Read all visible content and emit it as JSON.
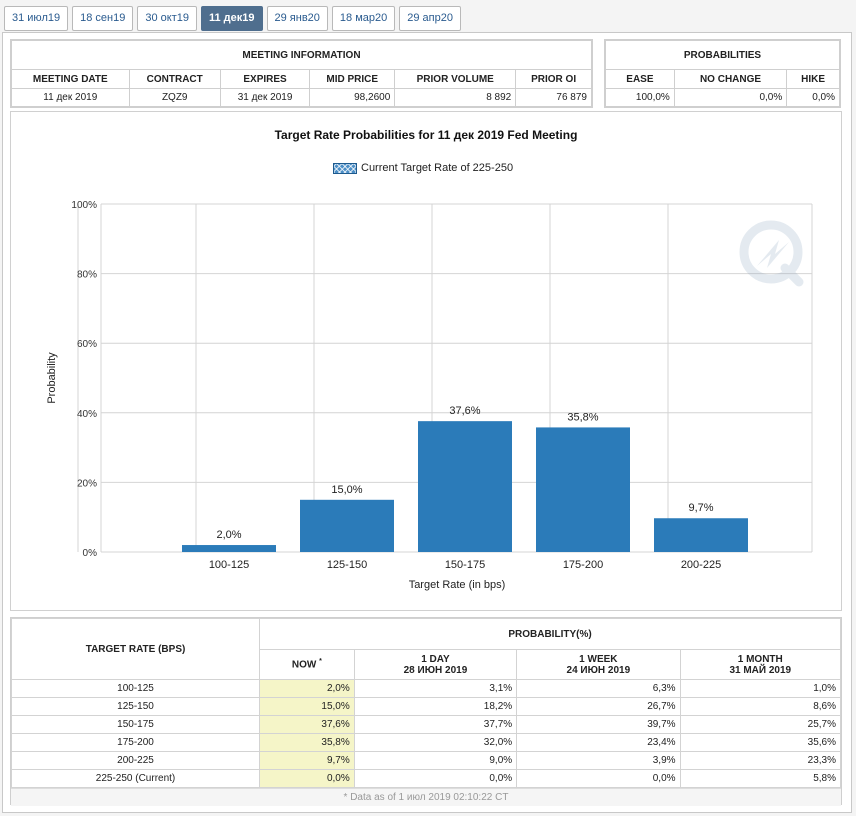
{
  "tabs": [
    "31 июл19",
    "18 сен19",
    "30 окт19",
    "11 дек19",
    "29 янв20",
    "18 мар20",
    "29 апр20"
  ],
  "active_tab": 3,
  "meeting_info": {
    "title": "MEETING INFORMATION",
    "headers": [
      "MEETING DATE",
      "CONTRACT",
      "EXPIRES",
      "MID PRICE",
      "PRIOR VOLUME",
      "PRIOR OI"
    ],
    "values": [
      "11 дек 2019",
      "ZQZ9",
      "31 дек 2019",
      "98,2600",
      "8 892",
      "76 879"
    ]
  },
  "probabilities": {
    "title": "PROBABILITIES",
    "headers": [
      "EASE",
      "NO CHANGE",
      "HIKE"
    ],
    "values": [
      "100,0%",
      "0,0%",
      "0,0%"
    ]
  },
  "chart_data": {
    "type": "bar",
    "title": "Target Rate Probabilities for 11 дек 2019 Fed Meeting",
    "legend": "Current Target Rate of 225-250",
    "categories": [
      "100-125",
      "125-150",
      "150-175",
      "175-200",
      "200-225"
    ],
    "values": [
      2.0,
      15.0,
      37.6,
      35.8,
      9.7
    ],
    "data_labels": [
      "2,0%",
      "15,0%",
      "37,6%",
      "35,8%",
      "9,7%"
    ],
    "ylim": [
      0,
      100
    ],
    "yticks": [
      0,
      20,
      40,
      60,
      80,
      100
    ],
    "ytick_labels": [
      "0%",
      "20%",
      "40%",
      "60%",
      "80%",
      "100%"
    ],
    "xlabel": "Target Rate (in bps)",
    "ylabel": "Probability",
    "grid": true,
    "bar_color": "#2b7bb9"
  },
  "prob_table": {
    "col_rate": "TARGET RATE (BPS)",
    "col_group": "PROBABILITY(%)",
    "now_label": "NOW",
    "now_mark": "*",
    "periods": [
      {
        "label": "1 DAY",
        "date": "28 ИЮН 2019"
      },
      {
        "label": "1 WEEK",
        "date": "24 ИЮН 2019"
      },
      {
        "label": "1 MONTH",
        "date": "31 МАЙ 2019"
      }
    ],
    "rows": [
      {
        "rate": "100-125",
        "now": "2,0%",
        "day": "3,1%",
        "week": "6,3%",
        "month": "1,0%"
      },
      {
        "rate": "125-150",
        "now": "15,0%",
        "day": "18,2%",
        "week": "26,7%",
        "month": "8,6%"
      },
      {
        "rate": "150-175",
        "now": "37,6%",
        "day": "37,7%",
        "week": "39,7%",
        "month": "25,7%"
      },
      {
        "rate": "175-200",
        "now": "35,8%",
        "day": "32,0%",
        "week": "23,4%",
        "month": "35,6%"
      },
      {
        "rate": "200-225",
        "now": "9,7%",
        "day": "9,0%",
        "week": "3,9%",
        "month": "23,3%"
      },
      {
        "rate": "225-250 (Current)",
        "now": "0,0%",
        "day": "0,0%",
        "week": "0,0%",
        "month": "5,8%"
      }
    ],
    "footnote": "* Data as of 1 июл 2019 02:10:22 CT"
  }
}
